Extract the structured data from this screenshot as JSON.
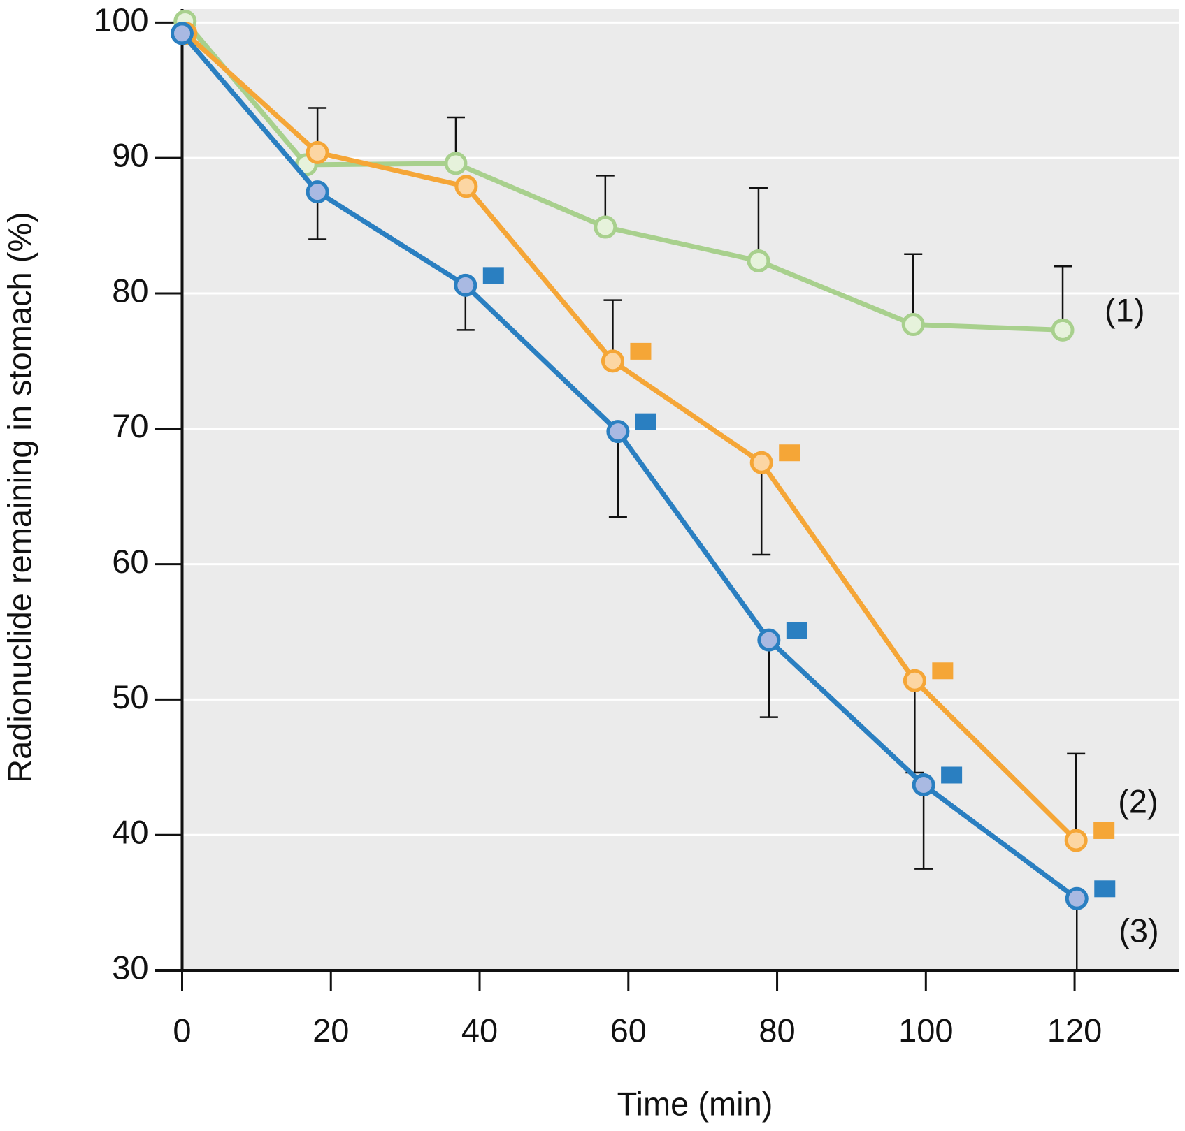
{
  "chart_data": {
    "type": "line",
    "xlabel": "Time (min)",
    "ylabel": "Radionuclide remaining in stomach (%)",
    "xlim": [
      0,
      134
    ],
    "ylim": [
      30,
      101
    ],
    "xticks": [
      0,
      20,
      40,
      60,
      80,
      100,
      120
    ],
    "yticks": [
      30,
      40,
      50,
      60,
      70,
      80,
      90,
      100
    ],
    "grid": true,
    "series": [
      {
        "name": "(1)",
        "color": "#a8d08d",
        "marker_fill": "#e6f2db",
        "x": [
          0.4,
          16.7,
          36.8,
          56.9,
          77.5,
          98.3,
          118.4
        ],
        "values": [
          100.1,
          89.5,
          89.6,
          84.9,
          82.4,
          77.7,
          77.3
        ],
        "err_upper": [
          null,
          null,
          3.4,
          3.8,
          5.4,
          5.2,
          4.7
        ],
        "err_lower": [
          null,
          null,
          null,
          null,
          null,
          null,
          null
        ],
        "significant": [
          false,
          false,
          false,
          false,
          false,
          false,
          false
        ]
      },
      {
        "name": "(2)",
        "color": "#f5a637",
        "marker_fill": "#fcd6a3",
        "x": [
          0.5,
          18.2,
          38.2,
          57.9,
          77.9,
          98.5,
          120.2
        ],
        "values": [
          99.2,
          90.4,
          87.9,
          75.0,
          67.5,
          51.4,
          39.6
        ],
        "err_upper": [
          null,
          3.3,
          null,
          4.5,
          null,
          null,
          6.4
        ],
        "err_lower": [
          null,
          null,
          null,
          null,
          6.8,
          6.8,
          null
        ],
        "significant": [
          false,
          false,
          false,
          true,
          true,
          true,
          true
        ]
      },
      {
        "name": "(3)",
        "color": "#2a7fc1",
        "marker_fill": "#a9b9e2",
        "x": [
          0,
          18.2,
          38.1,
          58.6,
          78.9,
          99.7,
          120.3
        ],
        "values": [
          99.2,
          87.5,
          80.6,
          69.8,
          54.4,
          43.7,
          35.3
        ],
        "err_upper": [
          null,
          null,
          null,
          null,
          null,
          null,
          null
        ],
        "err_lower": [
          null,
          3.5,
          3.3,
          6.3,
          5.7,
          6.2,
          5.3
        ],
        "significant": [
          false,
          false,
          true,
          true,
          true,
          true,
          true
        ]
      }
    ]
  }
}
